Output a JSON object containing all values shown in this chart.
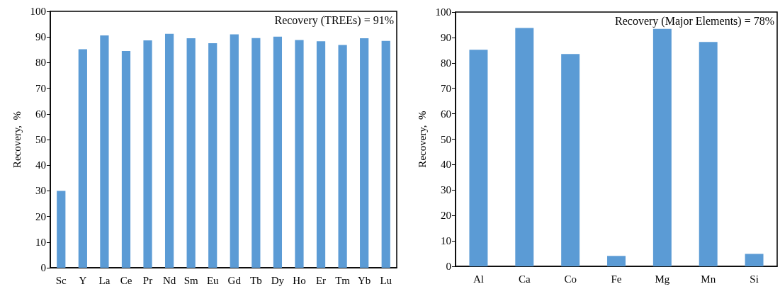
{
  "chart_data": [
    {
      "type": "bar",
      "ylabel": "Recovery,  %",
      "annotations": [
        "Recovery (TREEs) = 91%"
      ],
      "categories": [
        "Sc",
        "Y",
        "La",
        "Ce",
        "Pr",
        "Nd",
        "Sm",
        "Eu",
        "Gd",
        "Tb",
        "Dy",
        "Ho",
        "Er",
        "Tm",
        "Yb",
        "Lu"
      ],
      "values": [
        30.0,
        85.2,
        90.6,
        84.5,
        88.7,
        91.2,
        89.5,
        87.6,
        91.0,
        89.6,
        90.1,
        88.8,
        88.3,
        86.9,
        89.5,
        88.5
      ],
      "color": "#5b9bd5",
      "ylim": [
        0,
        100
      ],
      "yticks": [
        0,
        10,
        20,
        30,
        40,
        50,
        60,
        70,
        80,
        90,
        100
      ],
      "grid": false
    },
    {
      "type": "bar",
      "ylabel": "Recovery,  %",
      "annotations": [
        "Recovery (Major Elements) = 78%"
      ],
      "categories": [
        "Al",
        "Ca",
        "Co",
        "Fe",
        "Mg",
        "Mn",
        "Si"
      ],
      "values": [
        85.2,
        93.7,
        83.5,
        4.1,
        93.4,
        88.2,
        4.9
      ],
      "color": "#5b9bd5",
      "ylim": [
        0,
        100
      ],
      "yticks": [
        0,
        10,
        20,
        30,
        40,
        50,
        60,
        70,
        80,
        90,
        100
      ],
      "grid": false
    }
  ]
}
